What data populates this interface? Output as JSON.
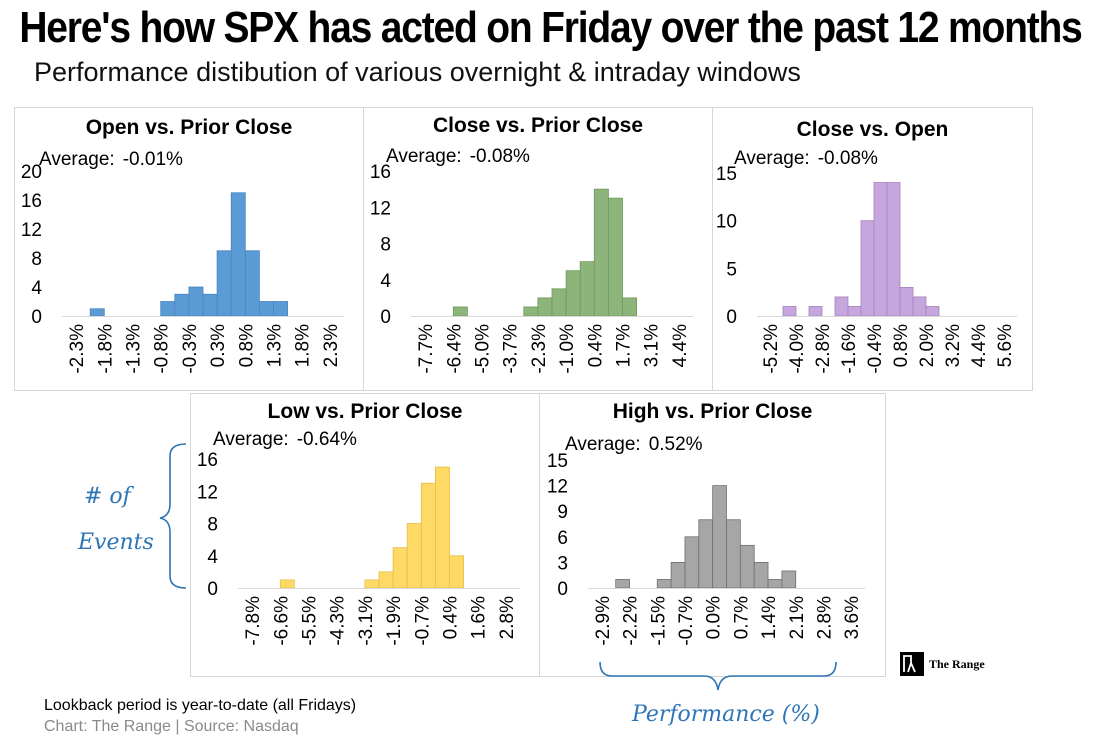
{
  "title": "Here's how SPX has acted on Friday over the past 12 months",
  "subtitle": "Performance distibution of various overnight & intraday windows",
  "average_label": "Average:",
  "chart_data": [
    {
      "type": "bar",
      "title": "Open vs. Prior Close",
      "average": "-0.01%",
      "color": "#5b9bd5",
      "edge": "#4a86c0",
      "yticks": [
        "20",
        "16",
        "12",
        "8",
        "4",
        "0"
      ],
      "ylim": [
        0,
        20
      ],
      "xticks": [
        "-2.3%",
        "-1.8%",
        "-1.3%",
        "-0.8%",
        "-0.3%",
        "0.3%",
        "0.8%",
        "1.3%",
        "1.8%",
        "2.3%"
      ],
      "values": [
        0,
        0,
        1,
        0,
        0,
        0,
        0,
        2,
        3,
        4,
        3,
        9,
        17,
        9,
        2,
        2,
        0,
        0,
        0,
        0
      ],
      "xlabel": "",
      "ylabel": ""
    },
    {
      "type": "bar",
      "title": "Close vs. Prior Close",
      "average": "-0.08%",
      "color": "#8db47a",
      "edge": "#6d9a5a",
      "yticks": [
        "16",
        "12",
        "8",
        "4",
        "0"
      ],
      "ylim": [
        0,
        16
      ],
      "xticks": [
        "-7.7%",
        "-6.4%",
        "-5.0%",
        "-3.7%",
        "-2.3%",
        "-1.0%",
        "0.4%",
        "1.7%",
        "3.1%",
        "4.4%"
      ],
      "values": [
        0,
        0,
        0,
        1,
        0,
        0,
        0,
        0,
        1,
        2,
        3,
        5,
        6,
        14,
        13,
        2,
        0,
        0,
        0,
        0
      ],
      "xlabel": "",
      "ylabel": ""
    },
    {
      "type": "bar",
      "title": "Close vs. Open",
      "average": "-0.08%",
      "color": "#c6a6dc",
      "edge": "#a582bf",
      "yticks": [
        "15",
        "10",
        "5",
        "0"
      ],
      "ylim": [
        0,
        15
      ],
      "xticks": [
        "-5.2%",
        "-4.0%",
        "-2.8%",
        "-1.6%",
        "-0.4%",
        "0.8%",
        "2.0%",
        "3.2%",
        "4.4%",
        "5.6%"
      ],
      "values": [
        0,
        0,
        1,
        0,
        1,
        0,
        2,
        1,
        10,
        14,
        14,
        3,
        2,
        1,
        0,
        0,
        0,
        0,
        0,
        0
      ],
      "xlabel": "",
      "ylabel": ""
    },
    {
      "type": "bar",
      "title": "Low vs. Prior Close",
      "average": "-0.64%",
      "color": "#ffd966",
      "edge": "#e5bf4a",
      "yticks": [
        "16",
        "12",
        "8",
        "4",
        "0"
      ],
      "ylim": [
        0,
        16
      ],
      "xticks": [
        "-7.8%",
        "-6.6%",
        "-5.5%",
        "-4.3%",
        "-3.1%",
        "-1.9%",
        "-0.7%",
        "0.4%",
        "1.6%",
        "2.8%"
      ],
      "values": [
        0,
        0,
        0,
        1,
        0,
        0,
        0,
        0,
        0,
        1,
        2,
        5,
        8,
        13,
        15,
        4,
        0,
        0,
        0,
        0
      ],
      "xlabel": "",
      "ylabel": ""
    },
    {
      "type": "bar",
      "title": "High vs. Prior Close",
      "average": "0.52%",
      "color": "#a6a6a6",
      "edge": "#6f6f6f",
      "yticks": [
        "15",
        "12",
        "9",
        "6",
        "3",
        "0"
      ],
      "ylim": [
        0,
        15
      ],
      "xticks": [
        "-2.9%",
        "-2.2%",
        "-1.5%",
        "-0.7%",
        "0.0%",
        "0.7%",
        "1.4%",
        "2.1%",
        "2.8%",
        "3.6%"
      ],
      "values": [
        0,
        0,
        1,
        0,
        0,
        1,
        3,
        6,
        8,
        12,
        8,
        5,
        3,
        1,
        2,
        0,
        0,
        0,
        0,
        0
      ],
      "xlabel": "",
      "ylabel": ""
    }
  ],
  "annotations": {
    "yaxis_label_line1": "# of",
    "yaxis_label_line2": "Events",
    "xaxis_label": "Performance (%)",
    "color": "#2e75b6"
  },
  "footer": {
    "lookback": "Lookback period is year-to-date (all Fridays)",
    "credit": "Chart: The Range | Source: Nasdaq"
  },
  "brand": {
    "name": "The Range"
  }
}
